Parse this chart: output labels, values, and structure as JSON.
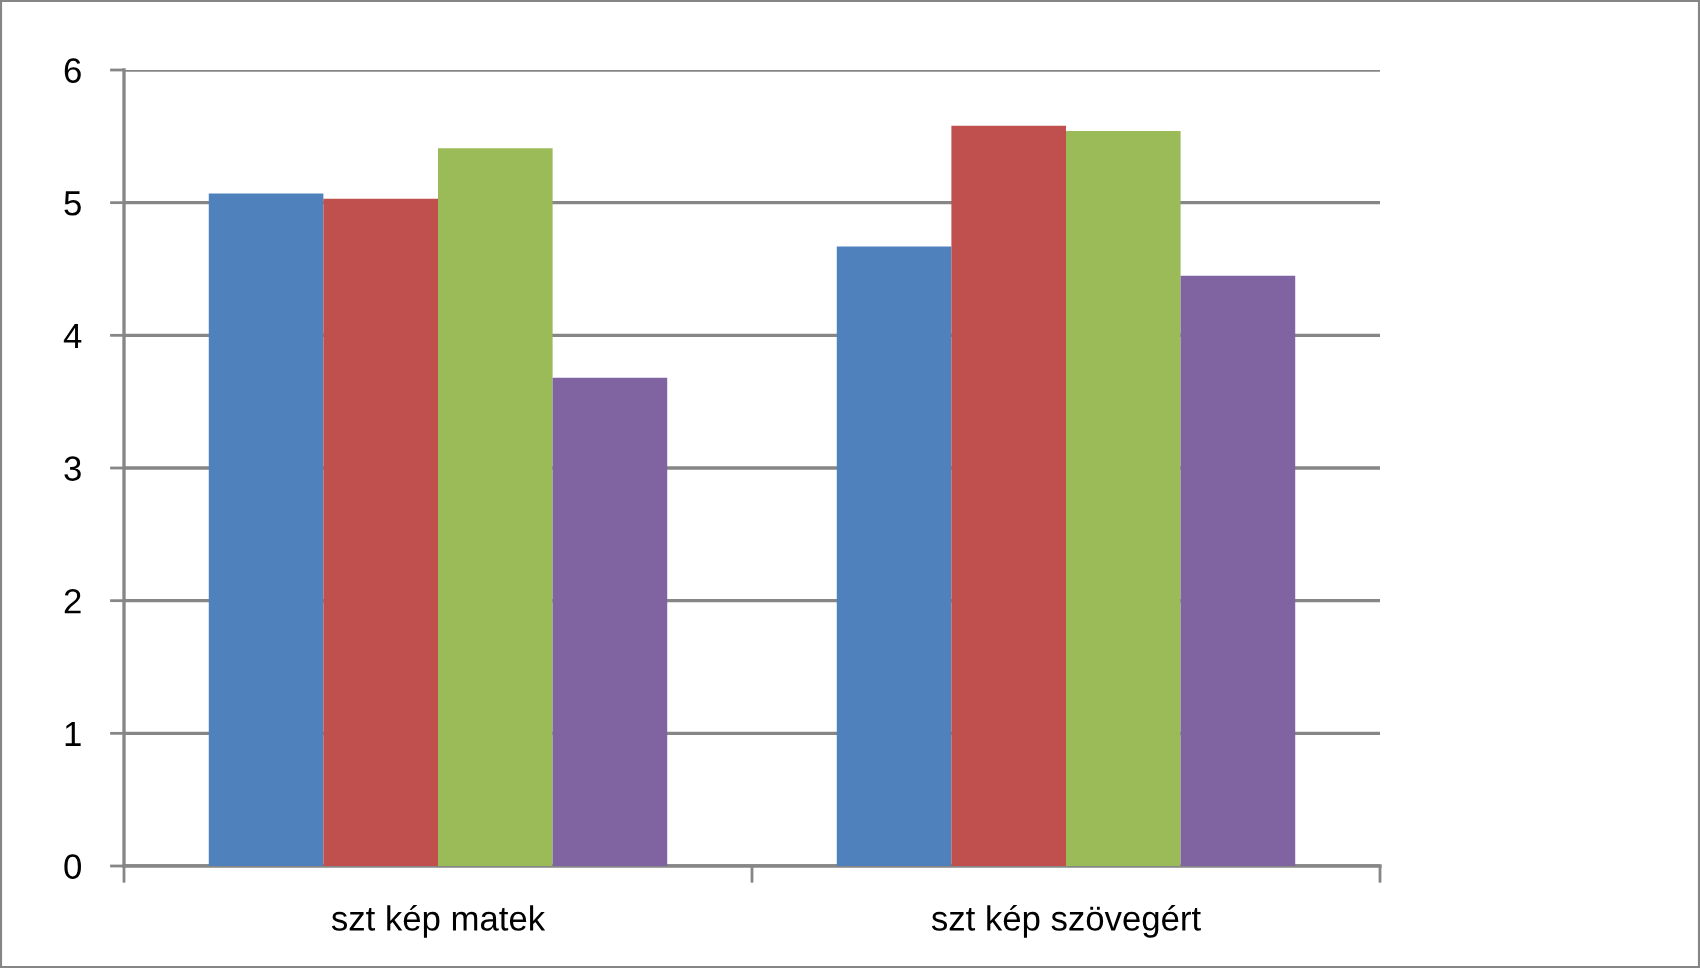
{
  "chart_data": {
    "type": "bar",
    "categories": [
      "szt kép matek",
      "szt kép szövegért"
    ],
    "series": [
      {
        "color": "#4f81bd",
        "values": [
          5.07,
          4.67
        ]
      },
      {
        "color": "#c0504d",
        "values": [
          5.03,
          5.58
        ]
      },
      {
        "color": "#9bbb59",
        "values": [
          5.41,
          5.54
        ]
      },
      {
        "color": "#8064a2",
        "values": [
          3.68,
          4.45
        ]
      }
    ],
    "ylim": [
      0,
      6
    ],
    "yticks": [
      0,
      1,
      2,
      3,
      4,
      5,
      6
    ],
    "grid": "y"
  }
}
